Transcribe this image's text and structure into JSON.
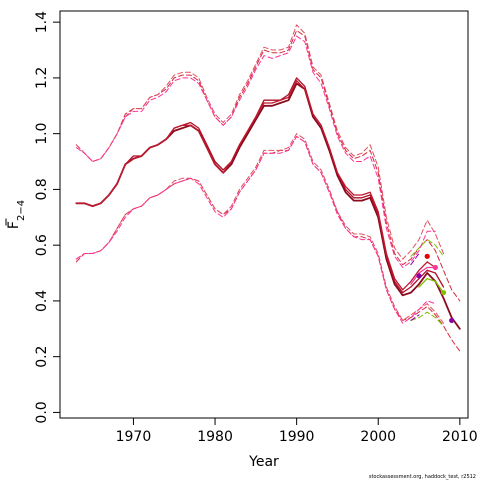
{
  "chart_data": {
    "type": "line",
    "xlabel": "Year",
    "ylabel": "F",
    "ylabel_subscript": "2−4",
    "caption": "stockassessment.org, haddock_test, r2512",
    "xlim": [
      1961,
      2011
    ],
    "ylim": [
      -0.02,
      1.44
    ],
    "x_ticks": [
      1970,
      1980,
      1990,
      2000,
      2010
    ],
    "y_ticks": [
      0.0,
      0.2,
      0.4,
      0.6,
      0.8,
      1.0,
      1.2,
      1.4
    ],
    "y_tick_labels": [
      "0.0",
      "0.2",
      "0.4",
      "0.6",
      "0.8",
      "1.0",
      "1.2",
      "1.4"
    ],
    "colors": {
      "main": "#8b0a1e",
      "retro": "#d42a3a",
      "pink": "#ff3399",
      "green": "#7fbf00",
      "purple": "#8800aa",
      "red": "#e60000"
    },
    "series": [
      {
        "style": "solid-main",
        "color": "#8b0a1e",
        "x": [
          1963,
          1964,
          1965,
          1966,
          1967,
          1968,
          1969,
          1970,
          1971,
          1972,
          1973,
          1974,
          1975,
          1976,
          1977,
          1978,
          1979,
          1980,
          1981,
          1982,
          1983,
          1984,
          1985,
          1986,
          1987,
          1988,
          1989,
          1990,
          1991,
          1992,
          1993,
          1994,
          1995,
          1996,
          1997,
          1998,
          1999,
          2000,
          2001,
          2002,
          2003,
          2004,
          2005,
          2006,
          2007,
          2008,
          2009,
          2010
        ],
        "y": [
          0.75,
          0.75,
          0.74,
          0.75,
          0.78,
          0.82,
          0.89,
          0.91,
          0.92,
          0.95,
          0.96,
          0.98,
          1.01,
          1.02,
          1.03,
          1.01,
          0.95,
          0.89,
          0.86,
          0.89,
          0.95,
          1.0,
          1.05,
          1.1,
          1.1,
          1.11,
          1.12,
          1.18,
          1.16,
          1.06,
          1.02,
          0.94,
          0.85,
          0.79,
          0.76,
          0.76,
          0.77,
          0.7,
          0.55,
          0.46,
          0.42,
          0.43,
          0.46,
          0.5,
          0.47,
          0.41,
          0.34,
          0.3
        ]
      },
      {
        "style": "solid",
        "color": "#b01028",
        "x": [
          1963,
          1964,
          1965,
          1966,
          1967,
          1968,
          1969,
          1970,
          1971,
          1972,
          1973,
          1974,
          1975,
          1976,
          1977,
          1978,
          1979,
          1980,
          1981,
          1982,
          1983,
          1984,
          1985,
          1986,
          1987,
          1988,
          1989,
          1990,
          1991,
          1992,
          1993,
          1994,
          1995,
          1996,
          1997,
          1998,
          1999,
          2000,
          2001,
          2002,
          2003,
          2004,
          2005,
          2006,
          2007,
          2008
        ],
        "y": [
          0.75,
          0.75,
          0.74,
          0.75,
          0.78,
          0.82,
          0.89,
          0.92,
          0.92,
          0.95,
          0.96,
          0.98,
          1.02,
          1.03,
          1.04,
          1.02,
          0.96,
          0.9,
          0.87,
          0.9,
          0.96,
          1.01,
          1.06,
          1.12,
          1.12,
          1.12,
          1.14,
          1.2,
          1.17,
          1.07,
          1.03,
          0.95,
          0.86,
          0.8,
          0.77,
          0.77,
          0.78,
          0.71,
          0.56,
          0.47,
          0.43,
          0.45,
          0.48,
          0.51,
          0.5,
          0.45
        ]
      },
      {
        "style": "solid",
        "color": "#c0182e",
        "x": [
          1963,
          1964,
          1965,
          1966,
          1967,
          1968,
          1969,
          1970,
          1971,
          1972,
          1973,
          1974,
          1975,
          1976,
          1977,
          1978,
          1979,
          1980,
          1981,
          1982,
          1983,
          1984,
          1985,
          1986,
          1987,
          1988,
          1989,
          1990,
          1991,
          1992,
          1993,
          1994,
          1995,
          1996,
          1997,
          1998,
          1999,
          2000,
          2001,
          2002,
          2003,
          2004,
          2005,
          2006,
          2007
        ],
        "y": [
          0.75,
          0.75,
          0.74,
          0.75,
          0.78,
          0.82,
          0.89,
          0.91,
          0.92,
          0.95,
          0.96,
          0.98,
          1.02,
          1.03,
          1.03,
          1.01,
          0.95,
          0.89,
          0.86,
          0.9,
          0.96,
          1.01,
          1.06,
          1.11,
          1.11,
          1.12,
          1.13,
          1.19,
          1.16,
          1.07,
          1.03,
          0.95,
          0.86,
          0.81,
          0.78,
          0.78,
          0.79,
          0.72,
          0.57,
          0.48,
          0.44,
          0.47,
          0.51,
          0.54,
          0.52
        ]
      },
      {
        "style": "solid",
        "color": "#ff3399",
        "x": [
          2004,
          2005,
          2006,
          2007
        ],
        "y": [
          0.46,
          0.5,
          0.52,
          0.52
        ]
      },
      {
        "style": "solid",
        "color": "#7fbf00",
        "x": [
          2005,
          2006,
          2007,
          2008
        ],
        "y": [
          0.45,
          0.48,
          0.47,
          0.43
        ]
      },
      {
        "style": "dashed",
        "color": "#d42a3a",
        "x": [
          1963,
          1964,
          1965,
          1966,
          1967,
          1968,
          1969,
          1970,
          1971,
          1972,
          1973,
          1974,
          1975,
          1976,
          1977,
          1978,
          1979,
          1980,
          1981,
          1982,
          1983,
          1984,
          1985,
          1986,
          1987,
          1988,
          1989,
          1990,
          1991,
          1992,
          1993,
          1994,
          1995,
          1996,
          1997,
          1998,
          1999,
          2000,
          2001,
          2002,
          2003,
          2004,
          2005,
          2006,
          2007,
          2008,
          2009,
          2010
        ],
        "y": [
          0.96,
          0.93,
          0.9,
          0.91,
          0.95,
          1.0,
          1.07,
          1.09,
          1.09,
          1.13,
          1.14,
          1.16,
          1.2,
          1.21,
          1.21,
          1.19,
          1.12,
          1.06,
          1.03,
          1.06,
          1.13,
          1.18,
          1.24,
          1.3,
          1.29,
          1.29,
          1.3,
          1.37,
          1.35,
          1.23,
          1.2,
          1.1,
          1.0,
          0.94,
          0.91,
          0.92,
          0.94,
          0.86,
          0.68,
          0.57,
          0.53,
          0.55,
          0.59,
          0.62,
          0.58,
          0.51,
          0.44,
          0.4
        ]
      },
      {
        "style": "dashed",
        "color": "#d42a3a",
        "x": [
          1963,
          1964,
          1965,
          1966,
          1967,
          1968,
          1969,
          1970,
          1971,
          1972,
          1973,
          1974,
          1975,
          1976,
          1977,
          1978,
          1979,
          1980,
          1981,
          1982,
          1983,
          1984,
          1985,
          1986,
          1987,
          1988,
          1989,
          1990,
          1991,
          1992,
          1993,
          1994,
          1995,
          1996,
          1997,
          1998,
          1999,
          2000,
          2001,
          2002,
          2003,
          2004,
          2005,
          2006,
          2007,
          2008,
          2009,
          2010
        ],
        "y": [
          0.54,
          0.57,
          0.57,
          0.58,
          0.61,
          0.66,
          0.71,
          0.73,
          0.74,
          0.77,
          0.78,
          0.8,
          0.82,
          0.83,
          0.84,
          0.83,
          0.78,
          0.73,
          0.71,
          0.73,
          0.79,
          0.83,
          0.87,
          0.93,
          0.93,
          0.94,
          0.94,
          0.99,
          0.97,
          0.89,
          0.86,
          0.79,
          0.72,
          0.66,
          0.63,
          0.63,
          0.62,
          0.56,
          0.44,
          0.37,
          0.33,
          0.34,
          0.36,
          0.38,
          0.35,
          0.31,
          0.26,
          0.22
        ]
      },
      {
        "style": "dashed",
        "color": "#e05060",
        "x": [
          1963,
          1964,
          1965,
          1966,
          1967,
          1968,
          1969,
          1970,
          1971,
          1972,
          1973,
          1974,
          1975,
          1976,
          1977,
          1978,
          1979,
          1980,
          1981,
          1982,
          1983,
          1984,
          1985,
          1986,
          1987,
          1988,
          1989,
          1990,
          1991,
          1992,
          1993,
          1994,
          1995,
          1996,
          1997,
          1998,
          1999,
          2000,
          2001,
          2002,
          2003,
          2004,
          2005,
          2006,
          2007,
          2008
        ],
        "y": [
          0.96,
          0.93,
          0.9,
          0.91,
          0.95,
          1.0,
          1.06,
          1.09,
          1.09,
          1.13,
          1.14,
          1.17,
          1.21,
          1.22,
          1.22,
          1.2,
          1.13,
          1.07,
          1.04,
          1.07,
          1.14,
          1.19,
          1.25,
          1.31,
          1.3,
          1.3,
          1.31,
          1.39,
          1.36,
          1.24,
          1.21,
          1.11,
          1.01,
          0.95,
          0.92,
          0.93,
          0.96,
          0.88,
          0.7,
          0.59,
          0.55,
          0.58,
          0.62,
          0.69,
          0.64,
          0.57
        ]
      },
      {
        "style": "dashed",
        "color": "#e05060",
        "x": [
          1963,
          1964,
          1965,
          1966,
          1967,
          1968,
          1969,
          1970,
          1971,
          1972,
          1973,
          1974,
          1975,
          1976,
          1977,
          1978,
          1979,
          1980,
          1981,
          1982,
          1983,
          1984,
          1985,
          1986,
          1987,
          1988,
          1989,
          1990,
          1991,
          1992,
          1993,
          1994,
          1995,
          1996,
          1997,
          1998,
          1999,
          2000,
          2001,
          2002,
          2003,
          2004,
          2005,
          2006,
          2007,
          2008
        ],
        "y": [
          0.55,
          0.57,
          0.57,
          0.58,
          0.61,
          0.66,
          0.71,
          0.73,
          0.74,
          0.77,
          0.78,
          0.8,
          0.83,
          0.84,
          0.84,
          0.83,
          0.78,
          0.73,
          0.71,
          0.74,
          0.8,
          0.84,
          0.88,
          0.94,
          0.94,
          0.94,
          0.95,
          1.0,
          0.98,
          0.9,
          0.87,
          0.8,
          0.72,
          0.67,
          0.64,
          0.64,
          0.63,
          0.57,
          0.45,
          0.38,
          0.33,
          0.35,
          0.37,
          0.39,
          0.36,
          0.32
        ]
      },
      {
        "style": "dashed",
        "color": "#ff3399",
        "x": [
          1963,
          1964,
          1965,
          1966,
          1967,
          1968,
          1969,
          1970,
          1971,
          1972,
          1973,
          1974,
          1975,
          1976,
          1977,
          1978,
          1979,
          1980,
          1981,
          1982,
          1983,
          1984,
          1985,
          1986,
          1987,
          1988,
          1989,
          1990,
          1991,
          1992,
          1993,
          1994,
          1995,
          1996,
          1997,
          1998,
          1999,
          2000,
          2001,
          2002,
          2003,
          2004,
          2005,
          2006,
          2007
        ],
        "y": [
          0.95,
          0.93,
          0.9,
          0.91,
          0.95,
          1.0,
          1.06,
          1.08,
          1.08,
          1.12,
          1.13,
          1.15,
          1.19,
          1.2,
          1.2,
          1.18,
          1.12,
          1.06,
          1.03,
          1.06,
          1.12,
          1.17,
          1.23,
          1.28,
          1.27,
          1.28,
          1.29,
          1.35,
          1.33,
          1.22,
          1.18,
          1.09,
          0.99,
          0.93,
          0.9,
          0.9,
          0.92,
          0.84,
          0.66,
          0.56,
          0.52,
          0.54,
          0.58,
          0.65,
          0.65
        ]
      },
      {
        "style": "dashed",
        "color": "#ff3399",
        "x": [
          1963,
          1964,
          1965,
          1966,
          1967,
          1968,
          1969,
          1970,
          1971,
          1972,
          1973,
          1974,
          1975,
          1976,
          1977,
          1978,
          1979,
          1980,
          1981,
          1982,
          1983,
          1984,
          1985,
          1986,
          1987,
          1988,
          1989,
          1990,
          1991,
          1992,
          1993,
          1994,
          1995,
          1996,
          1997,
          1998,
          1999,
          2000,
          2001,
          2002,
          2003,
          2004,
          2005,
          2006,
          2007
        ],
        "y": [
          0.55,
          0.57,
          0.57,
          0.58,
          0.61,
          0.65,
          0.7,
          0.73,
          0.74,
          0.77,
          0.78,
          0.8,
          0.82,
          0.83,
          0.84,
          0.82,
          0.77,
          0.72,
          0.7,
          0.73,
          0.79,
          0.83,
          0.87,
          0.93,
          0.93,
          0.93,
          0.94,
          0.99,
          0.97,
          0.89,
          0.86,
          0.79,
          0.71,
          0.66,
          0.63,
          0.62,
          0.62,
          0.56,
          0.44,
          0.37,
          0.32,
          0.34,
          0.37,
          0.4,
          0.39
        ]
      },
      {
        "style": "dashed",
        "color": "#7fbf00",
        "x": [
          2004,
          2005,
          2006,
          2007,
          2008
        ],
        "y": [
          0.56,
          0.59,
          0.62,
          0.6,
          0.56
        ]
      },
      {
        "style": "dashed",
        "color": "#7fbf00",
        "x": [
          2004,
          2005,
          2006,
          2007,
          2008
        ],
        "y": [
          0.33,
          0.34,
          0.36,
          0.34,
          0.31
        ]
      },
      {
        "style": "dashed",
        "color": "#8800aa",
        "x": [
          2004,
          2005
        ],
        "y": [
          0.53,
          0.57
        ]
      },
      {
        "style": "dashed",
        "color": "#8800aa",
        "x": [
          2004,
          2005
        ],
        "y": [
          0.33,
          0.35
        ]
      }
    ],
    "points": [
      {
        "x": 2005,
        "y": 0.49,
        "color": "#8800aa"
      },
      {
        "x": 2006,
        "y": 0.56,
        "color": "#e60000"
      },
      {
        "x": 2007,
        "y": 0.52,
        "color": "#ff3399"
      },
      {
        "x": 2008,
        "y": 0.43,
        "color": "#7fbf00"
      },
      {
        "x": 2009,
        "y": 0.33,
        "color": "#8800aa"
      }
    ]
  }
}
